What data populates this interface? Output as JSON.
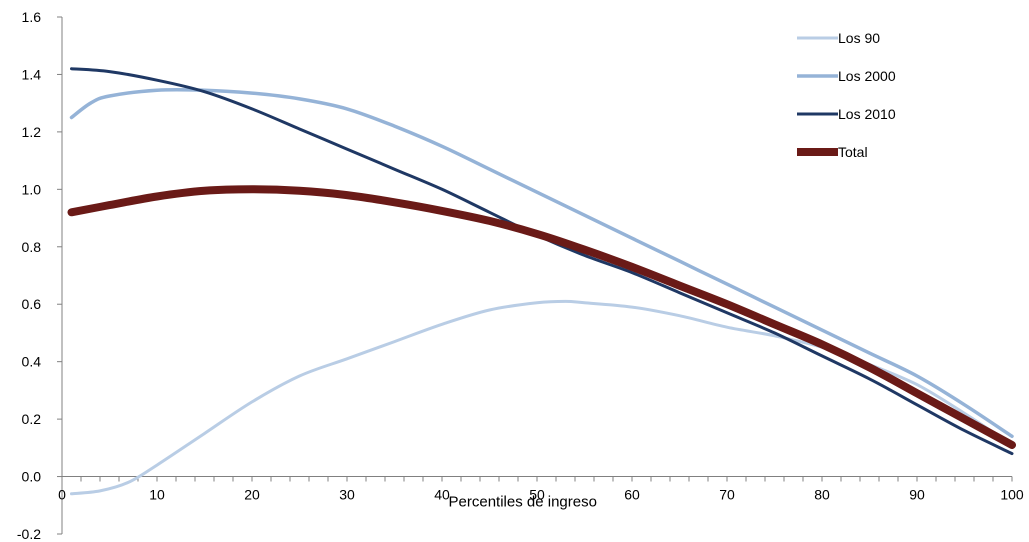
{
  "chart_data": {
    "type": "line",
    "title": "",
    "xlabel": "Percentiles de ingreso",
    "ylabel": "",
    "xlim": [
      0,
      100
    ],
    "ylim": [
      -0.2,
      1.6
    ],
    "x_ticks": [
      "0",
      "10",
      "20",
      "30",
      "40",
      "50",
      "60",
      "70",
      "80",
      "90",
      "100"
    ],
    "y_ticks": [
      "-0.2",
      "0.0",
      "0.2",
      "0.4",
      "0.6",
      "0.8",
      "1.0",
      "1.2",
      "1.4",
      "1.6"
    ],
    "legend": "top-right",
    "grid": false,
    "series": [
      {
        "name": "Los 90",
        "color": "#b9cde5",
        "x": [
          1,
          4,
          7,
          10,
          15,
          20,
          25,
          30,
          35,
          40,
          45,
          50,
          53,
          55,
          60,
          65,
          70,
          75,
          80,
          85,
          90,
          95,
          100
        ],
        "values": [
          -0.06,
          -0.05,
          -0.02,
          0.04,
          0.15,
          0.26,
          0.35,
          0.41,
          0.47,
          0.53,
          0.58,
          0.605,
          0.61,
          0.605,
          0.59,
          0.56,
          0.52,
          0.49,
          0.45,
          0.39,
          0.32,
          0.22,
          0.11
        ]
      },
      {
        "name": "Los 2000",
        "color": "#95b3d7",
        "x": [
          1,
          3,
          5,
          10,
          15,
          20,
          25,
          30,
          35,
          40,
          45,
          50,
          55,
          60,
          65,
          70,
          75,
          80,
          85,
          90,
          95,
          100
        ],
        "values": [
          1.25,
          1.3,
          1.325,
          1.345,
          1.345,
          1.335,
          1.315,
          1.28,
          1.22,
          1.15,
          1.07,
          0.99,
          0.91,
          0.83,
          0.75,
          0.67,
          0.59,
          0.51,
          0.43,
          0.35,
          0.25,
          0.14
        ]
      },
      {
        "name": "Los 2010",
        "color": "#1f3864",
        "x": [
          1,
          5,
          10,
          15,
          20,
          25,
          30,
          35,
          40,
          45,
          50,
          55,
          60,
          65,
          70,
          75,
          80,
          85,
          90,
          95,
          100
        ],
        "values": [
          1.42,
          1.41,
          1.38,
          1.34,
          1.28,
          1.21,
          1.14,
          1.07,
          1.0,
          0.92,
          0.84,
          0.77,
          0.71,
          0.64,
          0.57,
          0.5,
          0.42,
          0.34,
          0.25,
          0.16,
          0.08
        ]
      },
      {
        "name": "Total",
        "color": "#6a1a17",
        "x": [
          1,
          5,
          10,
          15,
          20,
          25,
          30,
          35,
          40,
          45,
          50,
          55,
          60,
          65,
          70,
          75,
          80,
          85,
          90,
          95,
          100
        ],
        "values": [
          0.92,
          0.945,
          0.975,
          0.995,
          1.0,
          0.995,
          0.98,
          0.955,
          0.925,
          0.89,
          0.845,
          0.79,
          0.73,
          0.665,
          0.6,
          0.53,
          0.46,
          0.38,
          0.29,
          0.2,
          0.11
        ]
      }
    ]
  }
}
